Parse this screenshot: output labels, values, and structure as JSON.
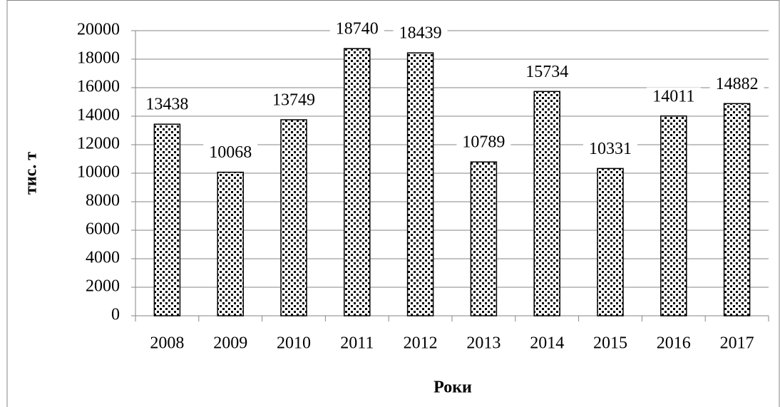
{
  "chart_data": {
    "type": "bar",
    "categories": [
      "2008",
      "2009",
      "2010",
      "2011",
      "2012",
      "2013",
      "2014",
      "2015",
      "2016",
      "2017"
    ],
    "values": [
      13438,
      10068,
      13749,
      18740,
      18439,
      10789,
      15734,
      10331,
      14011,
      14882
    ],
    "color": "#000000",
    "ylim": [
      0,
      20000
    ],
    "yticks": [
      0,
      2000,
      4000,
      6000,
      8000,
      10000,
      12000,
      14000,
      16000,
      18000,
      20000
    ],
    "grid": true,
    "y_axis_label": "тис. т",
    "x_axis_label": "Роки"
  }
}
